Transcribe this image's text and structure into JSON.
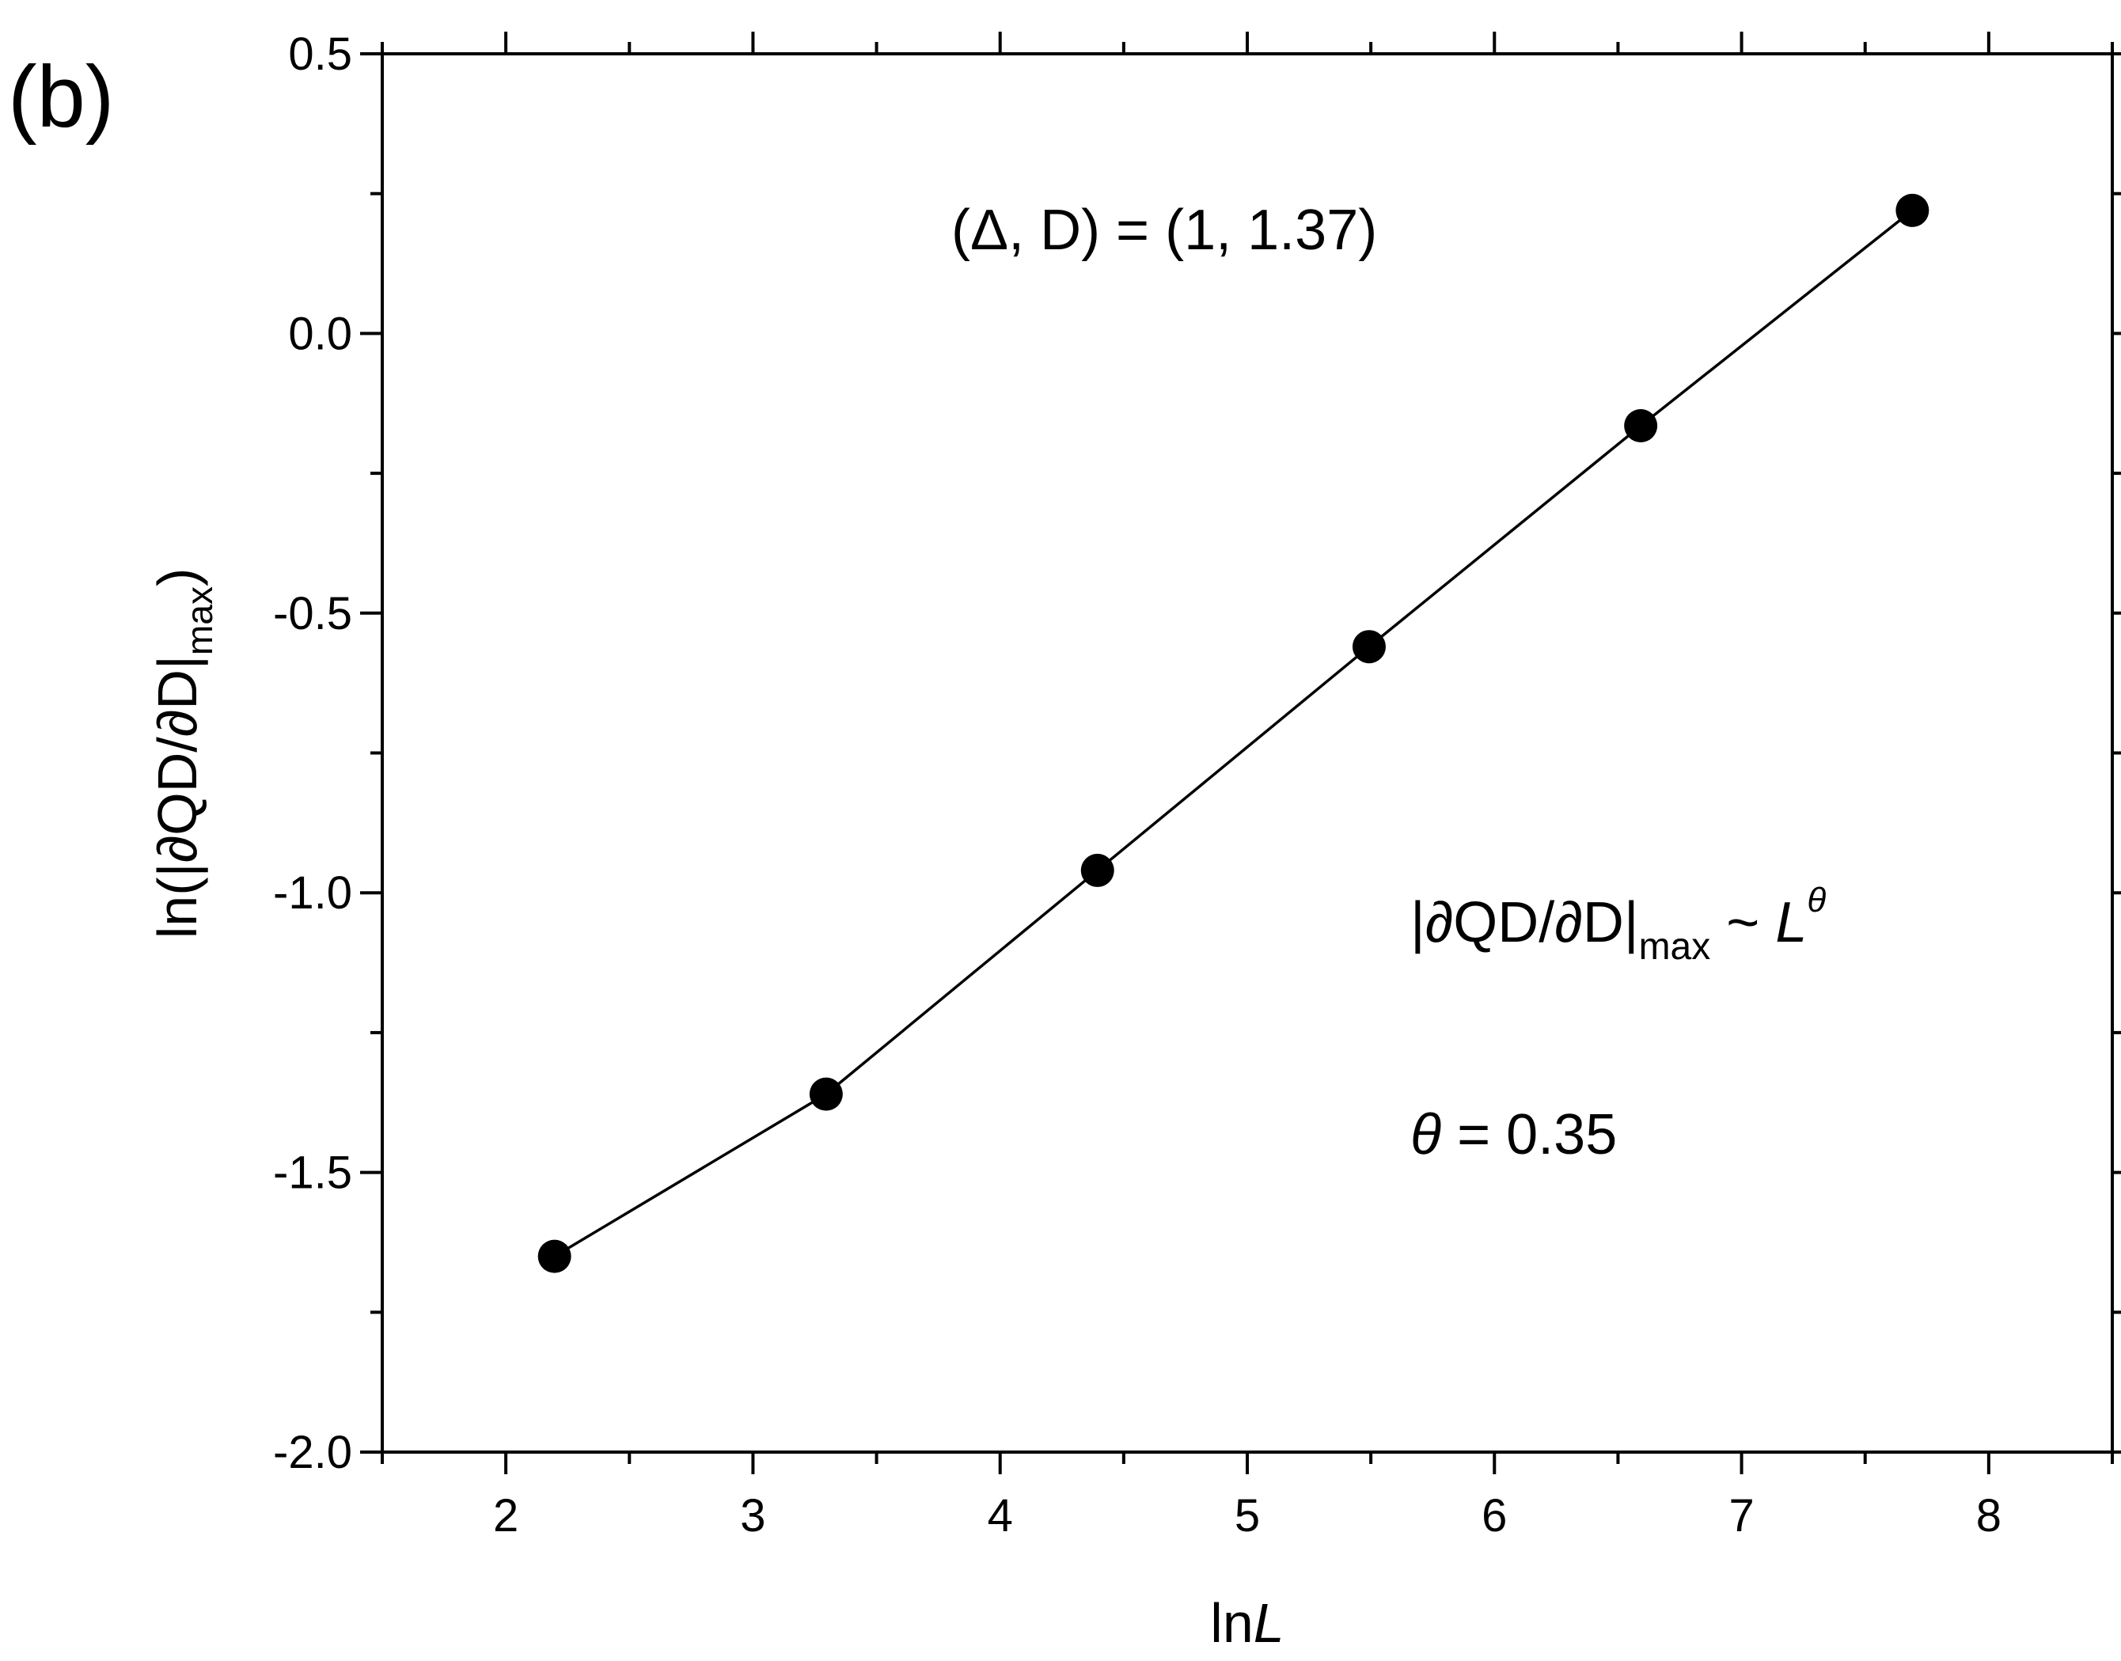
{
  "panel_label": "(b)",
  "chart_data": {
    "type": "line",
    "title": "",
    "xlabel_prefix": "ln",
    "xlabel_var": "L",
    "ylabel_main": "ln(|∂QD/∂D|",
    "ylabel_sub": "max",
    "ylabel_close": ")",
    "xlim": [
      1.5,
      8.5
    ],
    "ylim": [
      -2.0,
      0.5
    ],
    "xticks": [
      2,
      3,
      4,
      5,
      6,
      7,
      8
    ],
    "xtick_labels": [
      "2",
      "3",
      "4",
      "5",
      "6",
      "7",
      "8"
    ],
    "yticks": [
      -2.0,
      -1.5,
      -1.0,
      -0.5,
      0.0,
      0.5
    ],
    "ytick_labels": [
      "-2.0",
      "-1.5",
      "-1.0",
      "-0.5",
      "0.0",
      "0.5"
    ],
    "grid": false,
    "series": [
      {
        "x": [
          2.197,
          3.296,
          4.394,
          5.493,
          6.592,
          7.691
        ],
        "y": [
          -1.65,
          -1.36,
          -0.96,
          -0.56,
          -0.165,
          0.22
        ],
        "marker": "circle",
        "color": "#000000"
      }
    ],
    "annotations": {
      "params": "(Δ, D) = (1, 1.37)",
      "scaling_main": "|∂QD/∂D|",
      "scaling_sub": "max",
      "scaling_tilde": " ~ ",
      "scaling_L": "L",
      "scaling_exp": "θ",
      "theta_symbol": "θ",
      "theta_value": " = 0.35"
    }
  }
}
